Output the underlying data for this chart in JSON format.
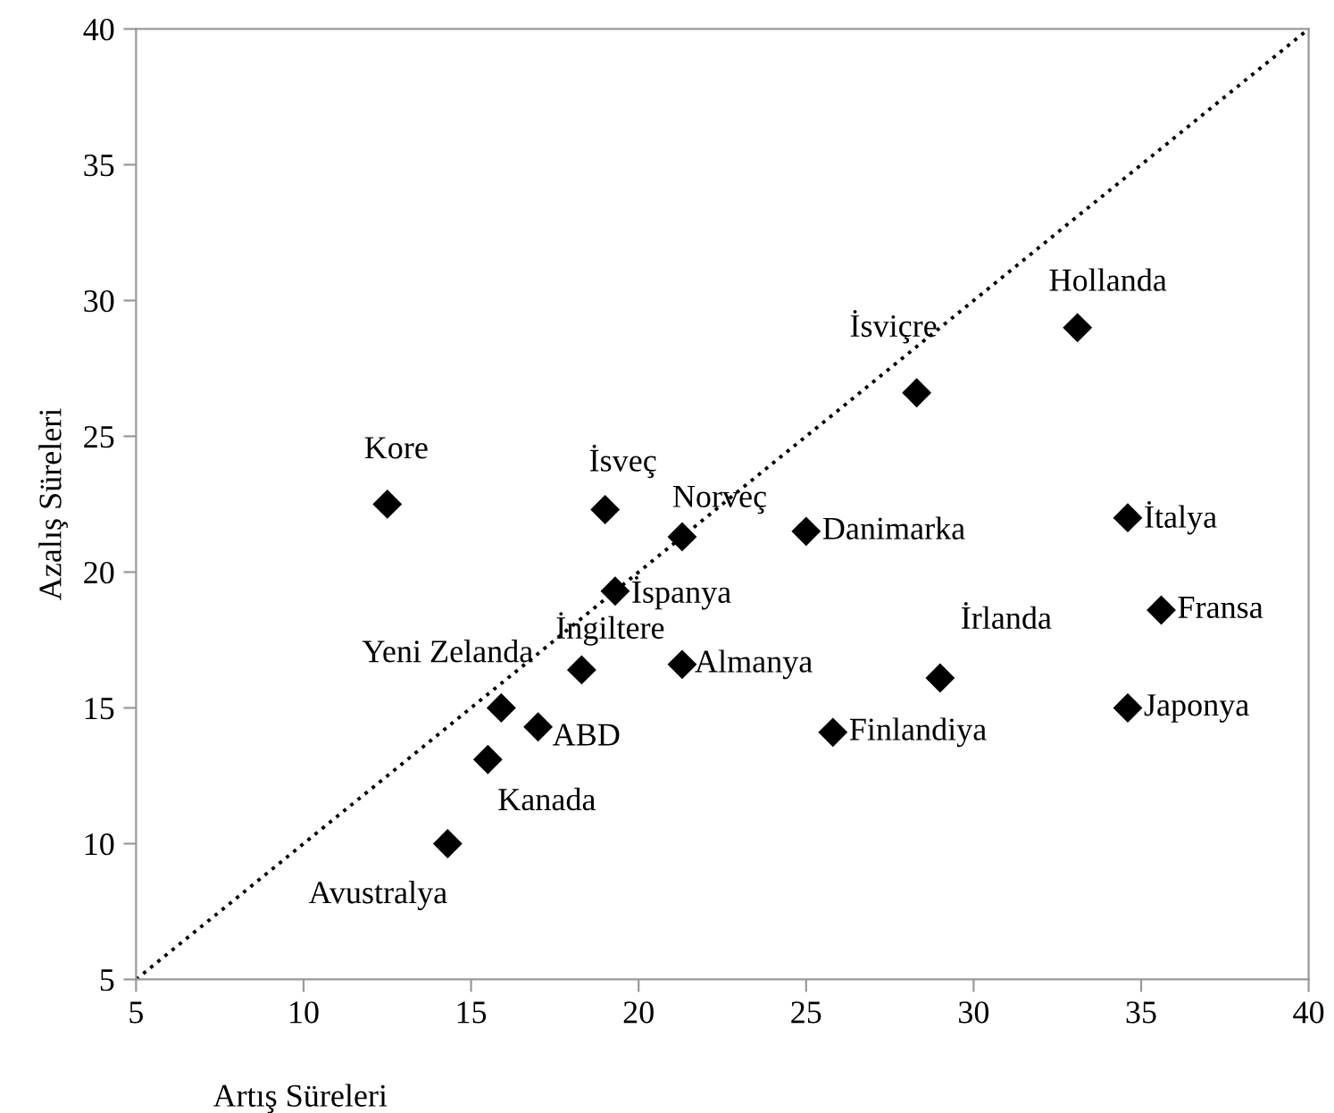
{
  "chart_data": {
    "type": "scatter",
    "xlabel": "Artış Süreleri",
    "ylabel": "Azalış Süreleri",
    "xlim": [
      5,
      40
    ],
    "ylim": [
      5,
      40
    ],
    "xticks": [
      5,
      10,
      15,
      20,
      25,
      30,
      35,
      40
    ],
    "yticks": [
      5,
      10,
      15,
      20,
      25,
      30,
      35,
      40
    ],
    "grid": false,
    "legend": false,
    "series": [
      {
        "color": "#000000",
        "marker": "diamond",
        "x": [
          12.5,
          19.0,
          21.3,
          19.3,
          25.0,
          28.3,
          33.1,
          34.6,
          35.6,
          34.6,
          29.0,
          25.8,
          21.3,
          18.3,
          15.9,
          17.0,
          15.5,
          14.3
        ],
        "values": [
          22.5,
          22.3,
          21.3,
          19.3,
          21.5,
          26.6,
          29.0,
          22.0,
          18.6,
          15.0,
          16.1,
          14.1,
          16.6,
          16.4,
          15.0,
          14.3,
          13.1,
          10.0
        ]
      },
      {
        "type": "line",
        "color": "#000000",
        "marker": "none",
        "line_style": "dotted",
        "x": [
          5,
          40
        ],
        "values": [
          5,
          40
        ]
      }
    ],
    "annotations": [
      {
        "text": "Kore",
        "x": 12.5,
        "y": 22.5
      },
      {
        "text": "İsveç",
        "x": 19.0,
        "y": 22.3
      },
      {
        "text": "Norveç",
        "x": 21.3,
        "y": 21.3
      },
      {
        "text": "İspanya",
        "x": 19.3,
        "y": 19.3
      },
      {
        "text": "Danimarka",
        "x": 25.0,
        "y": 21.5
      },
      {
        "text": "İsviçre",
        "x": 28.3,
        "y": 26.6
      },
      {
        "text": "Hollanda",
        "x": 33.1,
        "y": 29.0
      },
      {
        "text": "İtalya",
        "x": 34.6,
        "y": 22.0
      },
      {
        "text": "Fransa",
        "x": 35.6,
        "y": 18.6
      },
      {
        "text": "Japonya",
        "x": 34.6,
        "y": 15.0
      },
      {
        "text": "İrlanda",
        "x": 29.0,
        "y": 16.1
      },
      {
        "text": "Finlandiya",
        "x": 25.8,
        "y": 14.1
      },
      {
        "text": "Almanya",
        "x": 21.3,
        "y": 16.6
      },
      {
        "text": "İngiltere",
        "x": 18.3,
        "y": 16.4
      },
      {
        "text": "Yeni Zelanda",
        "x": 15.9,
        "y": 15.0
      },
      {
        "text": "ABD",
        "x": 17.0,
        "y": 14.3
      },
      {
        "text": "Kanada",
        "x": 15.5,
        "y": 13.1
      },
      {
        "text": "Avustralya",
        "x": 14.3,
        "y": 10.0
      }
    ]
  }
}
